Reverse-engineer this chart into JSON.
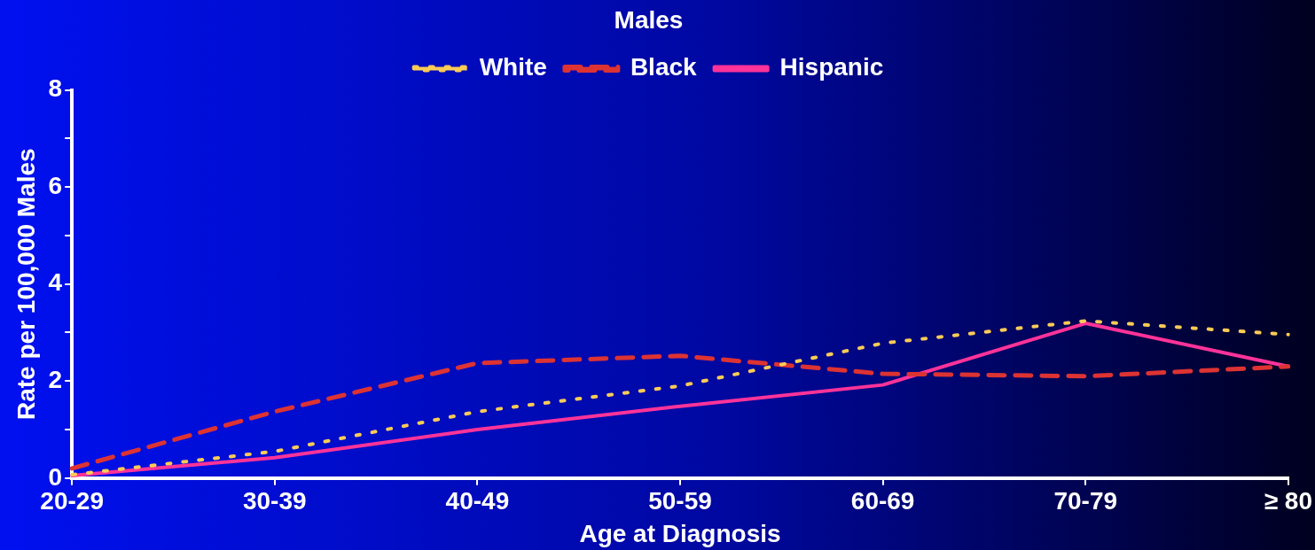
{
  "chart_data": {
    "type": "line",
    "legend_title": "Males",
    "xlabel": "Age at Diagnosis",
    "ylabel": "Rate per 100,000 Males",
    "categories": [
      "20-29",
      "30-39",
      "40-49",
      "50-59",
      "60-69",
      "70-79",
      "≥ 80"
    ],
    "series": [
      {
        "name": "White",
        "color": "#ffcc55",
        "line_style": "dotted",
        "values": [
          0.07,
          0.55,
          1.37,
          1.9,
          2.78,
          3.24,
          2.96
        ]
      },
      {
        "name": "Black",
        "color": "#dd3333",
        "line_style": "dashed",
        "values": [
          0.2,
          1.37,
          2.37,
          2.52,
          2.15,
          2.1,
          2.3
        ]
      },
      {
        "name": "Hispanic",
        "color": "#ff3399",
        "line_style": "solid",
        "values": [
          0.05,
          0.42,
          1.0,
          1.48,
          1.92,
          3.19,
          2.3
        ]
      }
    ],
    "ylim": [
      0,
      8
    ],
    "yticks": [
      0,
      {
        "value": 1,
        "label": null
      },
      2,
      {
        "value": 3,
        "label": null
      },
      4,
      {
        "value": 5,
        "label": null
      },
      6,
      {
        "value": 7,
        "label": null
      },
      8
    ],
    "grid": false,
    "legend": "top",
    "marker": "none"
  }
}
